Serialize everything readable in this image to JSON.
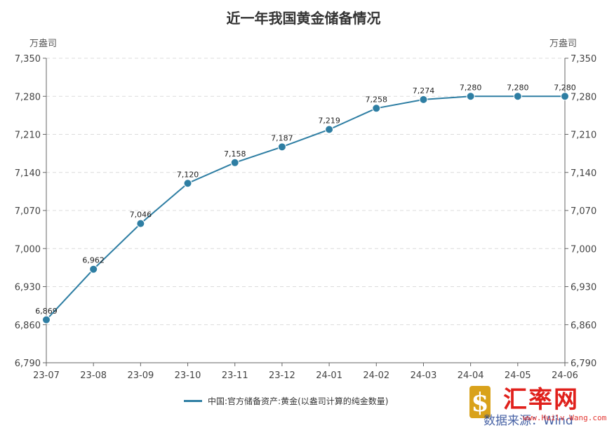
{
  "chart_data": {
    "type": "line",
    "title": "近一年我国黄金储备情况",
    "ylabel_left": "万盎司",
    "ylabel_right": "万盎司",
    "categories": [
      "23-07",
      "23-08",
      "23-09",
      "23-10",
      "23-11",
      "23-12",
      "24-01",
      "24-02",
      "24-03",
      "24-04",
      "24-05",
      "24-06"
    ],
    "series": [
      {
        "name": "中国:官方储备资产:黄金(以盎司计算的纯金数量)",
        "values": [
          6869,
          6962,
          7046,
          7120,
          7158,
          7187,
          7219,
          7258,
          7274,
          7280,
          7280,
          7280
        ],
        "labels": [
          "6,869",
          "6,962",
          "7,046",
          "7,120",
          "7,158",
          "7,187",
          "7,219",
          "7,258",
          "7,274",
          "7,280",
          "7,280",
          "7,280"
        ]
      }
    ],
    "ylim": [
      6790,
      7350
    ],
    "yticks": [
      6790,
      6860,
      6930,
      7000,
      7070,
      7140,
      7210,
      7280,
      7350
    ],
    "ytick_labels": [
      "6,790",
      "6,860",
      "6,930",
      "7,000",
      "7,070",
      "7,140",
      "7,210",
      "7,280",
      "7,350"
    ],
    "grid": true,
    "legend_position": "bottom-center",
    "color": "#2e7ea3"
  },
  "watermark": {
    "brand": "汇率网",
    "source": "数据来源：Wind",
    "url": "www.Huilv.Wang.com"
  }
}
